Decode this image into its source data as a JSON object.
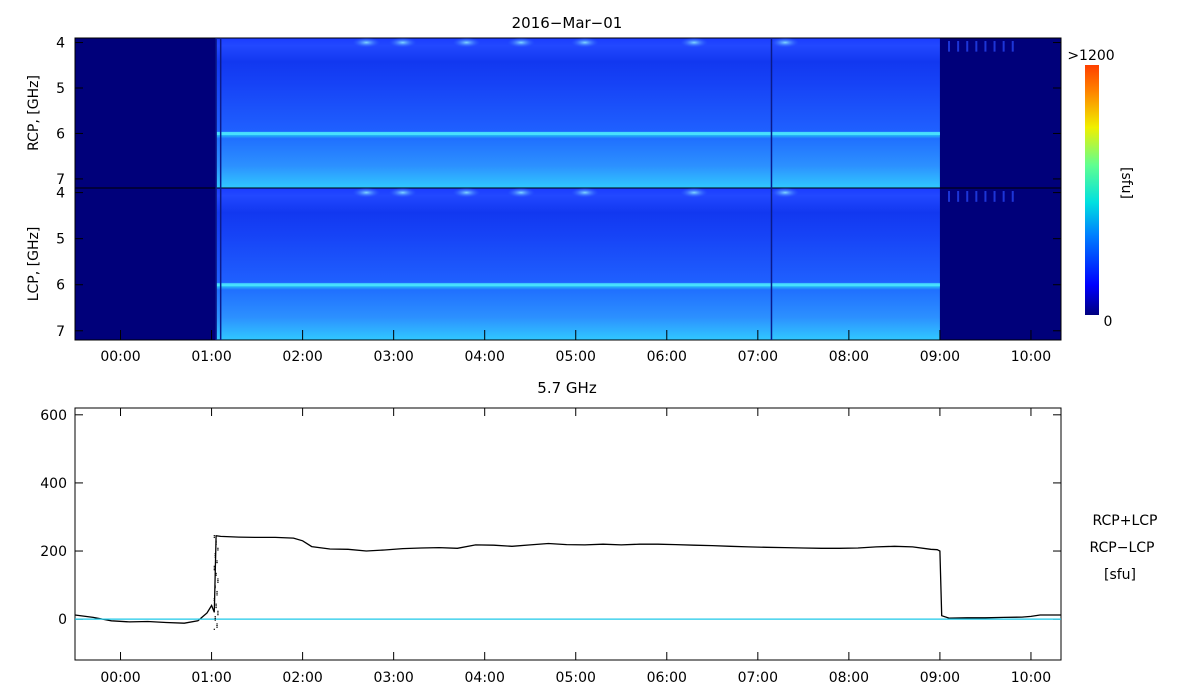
{
  "colors": {
    "background": "#ffffff",
    "axis": "#000000",
    "total_line": "#000000",
    "diff_line": "#1ec8e8",
    "legend_units": "#00008b",
    "colorbar": [
      "#00007f",
      "#0000ff",
      "#0080ff",
      "#00e0e0",
      "#60ff90",
      "#f0f000",
      "#ff8000",
      "#ff4000"
    ]
  },
  "chart_data": [
    {
      "type": "heatmap",
      "title": "2016−Mar−01",
      "ylabel": "RCP, [GHz]",
      "y_ticks": [
        "4",
        "5",
        "6",
        "7"
      ],
      "y_range": [
        3.9,
        7.2
      ],
      "x_ticks": [
        "00:00",
        "01:00",
        "02:00",
        "03:00",
        "04:00",
        "05:00",
        "06:00",
        "07:00",
        "08:00",
        "09:00",
        "10:00"
      ],
      "x_range_hours": [
        -0.5,
        10.33
      ],
      "observation_hours": [
        1.05,
        9.0
      ],
      "bright_band_ghz": 6.0,
      "colorbar": {
        "label": "[sfu]",
        "max_label": ">1200",
        "min_label": "0",
        "range": [
          0,
          1200
        ]
      }
    },
    {
      "type": "heatmap",
      "ylabel": "LCP, [GHz]",
      "y_ticks": [
        "4",
        "5",
        "6",
        "7"
      ],
      "y_range": [
        3.9,
        7.2
      ],
      "x_ticks": [
        "00:00",
        "01:00",
        "02:00",
        "03:00",
        "04:00",
        "05:00",
        "06:00",
        "07:00",
        "08:00",
        "09:00",
        "10:00"
      ],
      "x_range_hours": [
        -0.5,
        10.33
      ],
      "observation_hours": [
        1.05,
        9.0
      ],
      "bright_band_ghz": 6.0
    },
    {
      "type": "line",
      "title": "5.7 GHz",
      "x_ticks": [
        "00:00",
        "01:00",
        "02:00",
        "03:00",
        "04:00",
        "05:00",
        "06:00",
        "07:00",
        "08:00",
        "09:00",
        "10:00"
      ],
      "y_ticks": [
        "0",
        "200",
        "400",
        "600"
      ],
      "xlim_hours": [
        -0.5,
        10.33
      ],
      "ylim": [
        -120,
        620
      ],
      "legend": {
        "entries": [
          "RCP+LCP",
          "RCP−LCP"
        ],
        "units": "[sfu]",
        "placement": "right"
      },
      "series": [
        {
          "name": "RCP+LCP",
          "x": [
            -0.5,
            -0.3,
            -0.1,
            0.1,
            0.3,
            0.5,
            0.7,
            0.85,
            0.95,
            1.0,
            1.03,
            1.05,
            1.1,
            1.3,
            1.5,
            1.7,
            1.9,
            2.0,
            2.1,
            2.3,
            2.5,
            2.7,
            2.9,
            3.1,
            3.3,
            3.5,
            3.7,
            3.9,
            4.1,
            4.3,
            4.5,
            4.7,
            4.9,
            5.1,
            5.3,
            5.5,
            5.7,
            5.9,
            6.1,
            6.3,
            6.5,
            6.7,
            6.9,
            7.1,
            7.3,
            7.5,
            7.7,
            7.9,
            8.1,
            8.3,
            8.5,
            8.7,
            8.9,
            8.97,
            9.0,
            9.02,
            9.1,
            9.3,
            9.5,
            9.7,
            9.9,
            10.0,
            10.1,
            10.33
          ],
          "values": [
            12,
            5,
            -5,
            -8,
            -7,
            -10,
            -12,
            -5,
            18,
            40,
            20,
            245,
            243,
            241,
            240,
            240,
            238,
            230,
            213,
            206,
            205,
            200,
            203,
            207,
            209,
            210,
            208,
            218,
            217,
            214,
            218,
            222,
            219,
            218,
            220,
            218,
            220,
            220,
            219,
            217,
            216,
            214,
            212,
            211,
            210,
            209,
            208,
            208,
            209,
            212,
            214,
            212,
            205,
            204,
            200,
            10,
            3,
            4,
            4,
            5,
            6,
            8,
            12,
            12
          ]
        },
        {
          "name": "RCP−LCP",
          "x": [
            -0.5,
            1.0,
            1.05,
            10.33
          ],
          "values": [
            0,
            0,
            0,
            0
          ]
        }
      ]
    }
  ]
}
